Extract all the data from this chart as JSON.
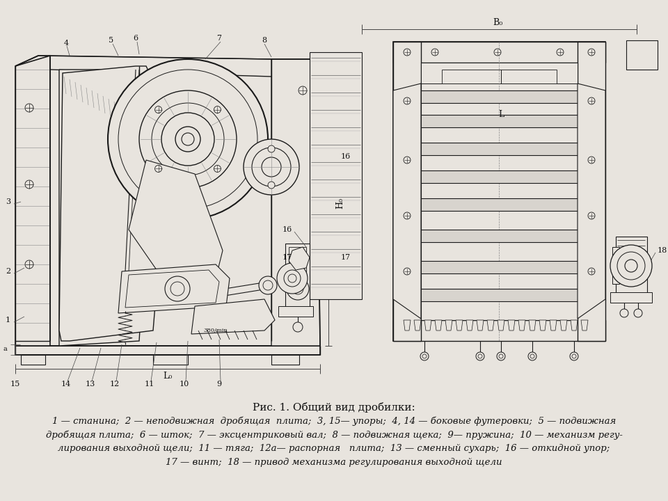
{
  "background_color": "#e8e4de",
  "title": "Рис. 1. Общий вид дробилки:",
  "caption_lines": [
    "1 — станина;  2 — неподвижная  дробящая  плита;  3, 15— упоры;  4, 14 — боковые футеровки;  5 — подвижная",
    "дробящая плита;  6 — шток;  7 — эксцентриковый вал;  8 — подвижная щека;  9— пружина;  10 — механизм регу-",
    "лирования выходной щели;  11 — тяга;  12а— распорная   плита;  13 — сменный сухарь;  16 — откидной упор;",
    "17 — винт;  18 — привод механизма регулирования выходной щели"
  ],
  "title_fontsize": 11,
  "caption_fontsize": 9.5,
  "fig_width": 9.6,
  "fig_height": 7.2,
  "dpi": 100,
  "lc": "#1a1a1a",
  "lc_dim": "#444444"
}
